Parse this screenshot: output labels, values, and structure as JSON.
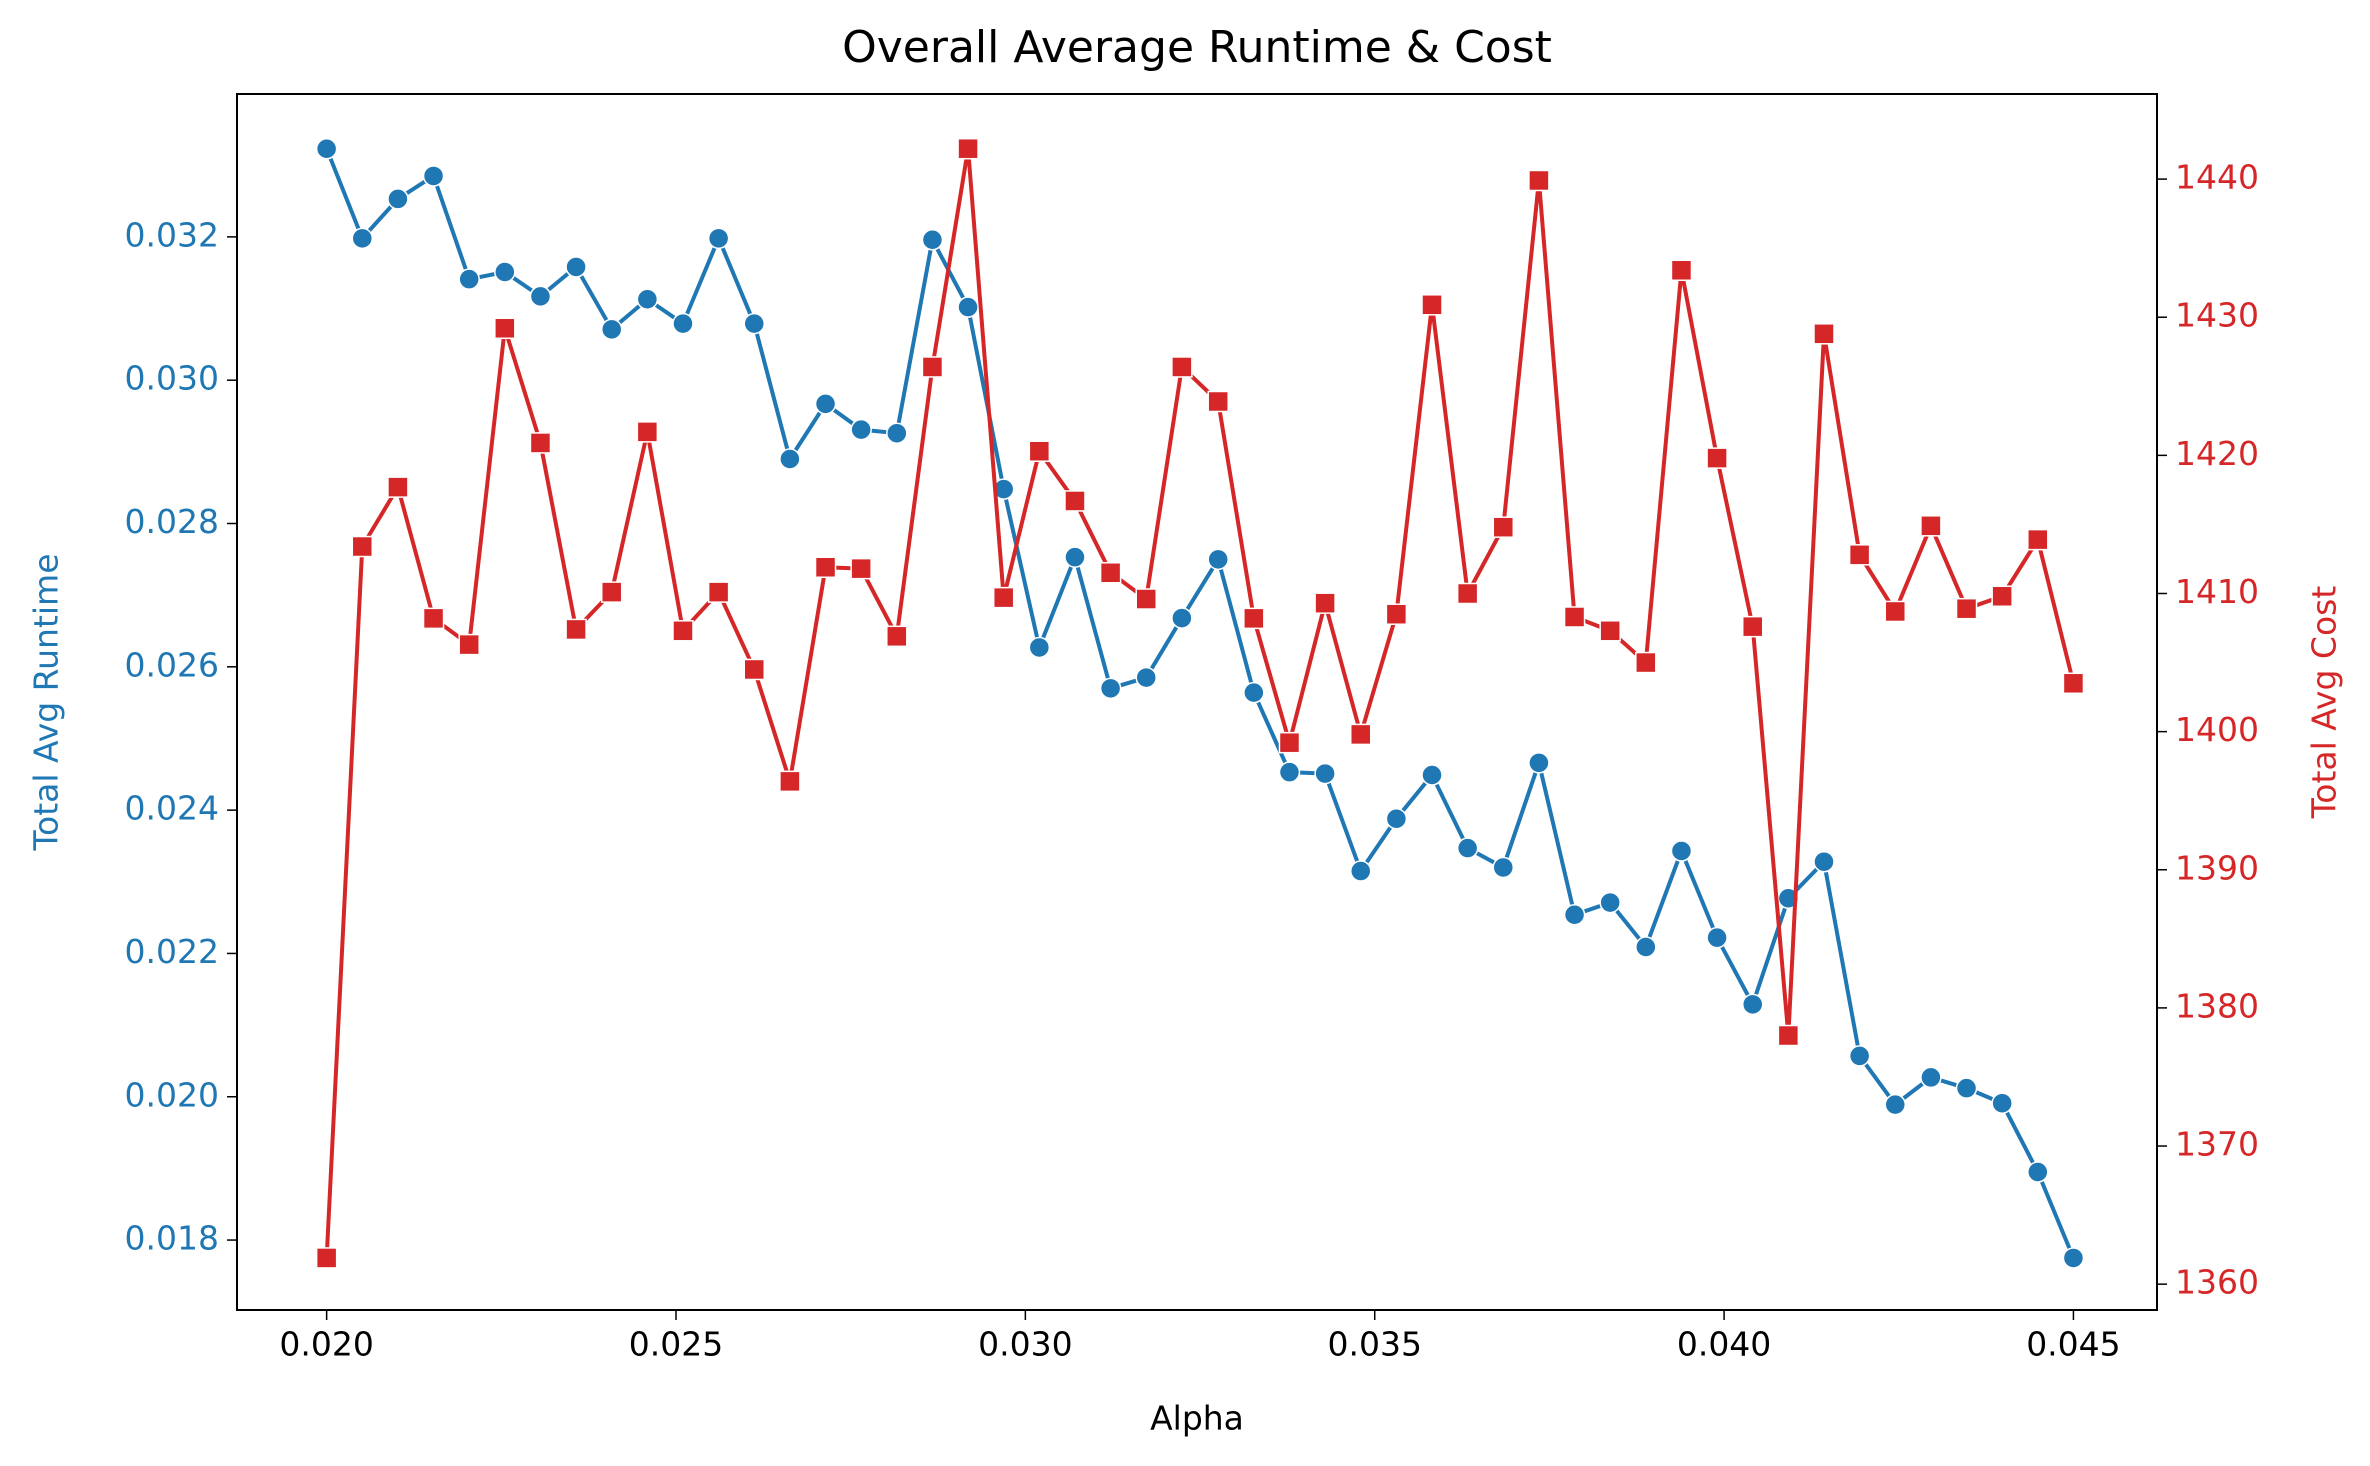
{
  "chart_data": {
    "type": "line",
    "title": "Overall Average Runtime & Cost",
    "x_label": "Alpha",
    "y_label": "Total Avg Runtime",
    "y2_label": "Total Avg Cost",
    "x": [
      0.02,
      0.02051,
      0.02102,
      0.02153,
      0.02204,
      0.02255,
      0.02306,
      0.02357,
      0.02408,
      0.02459,
      0.0251,
      0.02561,
      0.02612,
      0.02663,
      0.02714,
      0.02765,
      0.02816,
      0.02867,
      0.02918,
      0.02969,
      0.0302,
      0.03071,
      0.03122,
      0.03173,
      0.03224,
      0.03276,
      0.03327,
      0.03378,
      0.03429,
      0.0348,
      0.03531,
      0.03582,
      0.03633,
      0.03684,
      0.03735,
      0.03786,
      0.03837,
      0.03888,
      0.03939,
      0.0399,
      0.04041,
      0.04092,
      0.04143,
      0.04194,
      0.04245,
      0.04296,
      0.04347,
      0.04398,
      0.04449,
      0.045
    ],
    "series": [
      {
        "name": "Total Avg Runtime",
        "color": "#1f77b4",
        "marker": "circle",
        "axis": "y",
        "values": [
          0.03323,
          0.03198,
          0.03253,
          0.03285,
          0.03141,
          0.03151,
          0.03117,
          0.03158,
          0.03071,
          0.03113,
          0.03079,
          0.03198,
          0.03079,
          0.0289,
          0.02967,
          0.02931,
          0.02926,
          0.03196,
          0.03102,
          0.02848,
          0.02627,
          0.02753,
          0.0257,
          0.02585,
          0.02668,
          0.0275,
          0.02564,
          0.02453,
          0.02451,
          0.02315,
          0.02388,
          0.02449,
          0.02347,
          0.0232,
          0.02466,
          0.02254,
          0.02271,
          0.02209,
          0.02343,
          0.02222,
          0.02129,
          0.02277,
          0.02328,
          0.02057,
          0.01989,
          0.02027,
          0.02012,
          0.01991,
          0.01895,
          0.01775
        ]
      },
      {
        "name": "Total Avg Cost",
        "color": "#d62728",
        "marker": "square",
        "axis": "y2",
        "values": [
          1361.9,
          1413.4,
          1417.7,
          1408.2,
          1406.3,
          1429.2,
          1420.9,
          1407.4,
          1410.1,
          1421.7,
          1407.3,
          1410.1,
          1404.5,
          1396.4,
          1411.9,
          1411.8,
          1406.9,
          1426.4,
          1442.2,
          1409.7,
          1420.3,
          1416.7,
          1411.5,
          1409.6,
          1426.4,
          1423.9,
          1408.2,
          1399.2,
          1409.3,
          1399.8,
          1408.5,
          1430.9,
          1410.0,
          1414.8,
          1439.9,
          1408.3,
          1407.3,
          1405.0,
          1433.4,
          1419.8,
          1407.6,
          1378.0,
          1428.8,
          1412.8,
          1408.7,
          1414.9,
          1408.9,
          1409.8,
          1413.9,
          1403.5
        ]
      }
    ],
    "xlim": [
      0.018717,
      0.046196
    ],
    "xticks": [
      {
        "value": 0.02,
        "label": "0.020"
      },
      {
        "value": 0.025,
        "label": "0.025"
      },
      {
        "value": 0.03,
        "label": "0.030"
      },
      {
        "value": 0.035,
        "label": "0.035"
      },
      {
        "value": 0.04,
        "label": "0.040"
      },
      {
        "value": 0.045,
        "label": "0.045"
      }
    ],
    "ylim": [
      0.017024,
      0.033994
    ],
    "yticks": [
      {
        "value": 0.018,
        "label": "0.018"
      },
      {
        "value": 0.02,
        "label": "0.020"
      },
      {
        "value": 0.022,
        "label": "0.022"
      },
      {
        "value": 0.024,
        "label": "0.024"
      },
      {
        "value": 0.026,
        "label": "0.026"
      },
      {
        "value": 0.028,
        "label": "0.028"
      },
      {
        "value": 0.03,
        "label": "0.030"
      },
      {
        "value": 0.032,
        "label": "0.032"
      }
    ],
    "y2lim": [
      1358.13,
      1446.16
    ],
    "y2ticks": [
      1360,
      1370,
      1380,
      1390,
      1400,
      1410,
      1420,
      1430,
      1440
    ],
    "grid": false
  }
}
